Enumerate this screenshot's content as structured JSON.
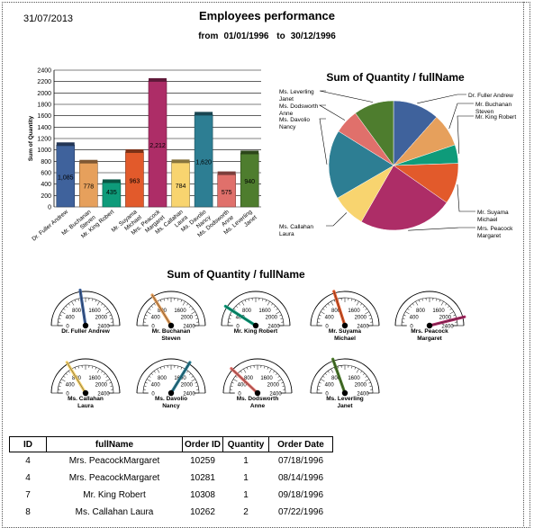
{
  "report": {
    "date": "31/07/2013",
    "title": "Employees performance",
    "from_label": "from",
    "from_date": "01/01/1996",
    "to_label": "to",
    "to_date": "30/12/1996"
  },
  "colors": [
    "#3f629c",
    "#e6a05c",
    "#0e9b7a",
    "#e25a2b",
    "#ad2d67",
    "#f8d46f",
    "#2d7e93",
    "#e0706b",
    "#4e7d2e"
  ],
  "bar_chart": {
    "chart_data": {
      "type": "bar",
      "ylabel": "Sum of Quantity",
      "ylim": [
        0,
        2400
      ],
      "yticks": [
        0,
        200,
        400,
        600,
        800,
        1000,
        1200,
        1400,
        1600,
        1800,
        2000,
        2200,
        2400
      ],
      "grid": true,
      "categories": [
        [
          "Dr. Fuller Andrew"
        ],
        [
          "Mr. Buchanan",
          "Steven"
        ],
        [
          "Mr. King Robert"
        ],
        [
          "Mr. Suyama",
          "Michael"
        ],
        [
          "Mrs. Peacock",
          "Margaret"
        ],
        [
          "Ms. Callahan",
          "Laura"
        ],
        [
          "Ms. Davolio",
          "Nancy"
        ],
        [
          "Ms. Dodsworth",
          "Anne"
        ],
        [
          "Ms. Leverling",
          "Janet"
        ]
      ],
      "values": [
        1085,
        778,
        435,
        963,
        2212,
        784,
        1620,
        575,
        940
      ],
      "labels": [
        "1,085",
        "778",
        "435",
        "963",
        "2,212",
        "784",
        "1,620",
        "575",
        "940"
      ]
    }
  },
  "pie_chart": {
    "title": "Sum of Quantity / fullName",
    "chart_data": {
      "type": "pie",
      "values": [
        1085,
        778,
        435,
        963,
        2212,
        784,
        1620,
        575,
        940
      ],
      "labels": [
        [
          "Dr. Fuller Andrew"
        ],
        [
          "Mr. Buchanan",
          "Steven"
        ],
        [
          "Mr. King Robert"
        ],
        [
          "Mr. Suyama",
          "Michael"
        ],
        [
          "Mrs. Peacock",
          "Margaret"
        ],
        [
          "Ms. Callahan",
          "Laura"
        ],
        [
          "Ms. Davolio",
          "Nancy"
        ],
        [
          "Ms. Dodsworth",
          "Anne"
        ],
        [
          "Ms. Leverling",
          "Janet"
        ]
      ]
    }
  },
  "gauges": {
    "title": "Sum of Quantity / fullName",
    "chart_data": {
      "type": "gauge",
      "range": [
        0,
        2400
      ],
      "ticks": [
        "0",
        "400",
        "800",
        "1600",
        "2000",
        "2400"
      ],
      "items": [
        {
          "name": [
            "Dr. Fuller Andrew"
          ],
          "value": 1085
        },
        {
          "name": [
            "Mr. Buchanan",
            "Steven"
          ],
          "value": 778
        },
        {
          "name": [
            "Mr. King Robert"
          ],
          "value": 435
        },
        {
          "name": [
            "Mr. Suyama",
            "Michael"
          ],
          "value": 963
        },
        {
          "name": [
            "Mrs. Peacock",
            "Margaret"
          ],
          "value": 2212
        },
        {
          "name": [
            "Ms. Callahan",
            "Laura"
          ],
          "value": 784
        },
        {
          "name": [
            "Ms. Davolio",
            "Nancy"
          ],
          "value": 1620
        },
        {
          "name": [
            "Ms. Dodsworth",
            "Anne"
          ],
          "value": 575
        },
        {
          "name": [
            "Ms. Leverling",
            "Janet"
          ],
          "value": 940
        }
      ]
    }
  },
  "table": {
    "headers": [
      "ID",
      "fullName",
      "Order ID",
      "Quantity",
      "Order Date"
    ],
    "rows": [
      [
        "4",
        "Mrs. PeacockMargaret",
        "10259",
        "1",
        "07/18/1996"
      ],
      [
        "4",
        "Mrs. PeacockMargaret",
        "10281",
        "1",
        "08/14/1996"
      ],
      [
        "7",
        "Mr. King Robert",
        "10308",
        "1",
        "09/18/1996"
      ],
      [
        "8",
        "Ms. Callahan Laura",
        "10262",
        "2",
        "07/22/1996"
      ]
    ]
  }
}
